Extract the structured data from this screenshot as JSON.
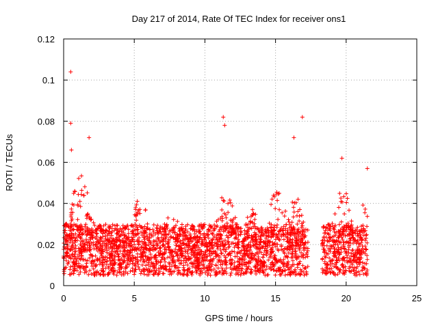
{
  "chart_data": {
    "type": "scatter",
    "title": "Day 217 of 2014, Rate Of TEC Index for receiver ons1",
    "xlabel": "GPS time / hours",
    "ylabel": "ROTI / TECUs",
    "xlim": [
      0,
      25
    ],
    "ylim": [
      0,
      0.12
    ],
    "xticks": [
      "0",
      "5",
      "10",
      "15",
      "20",
      "25"
    ],
    "yticks": [
      "0",
      "0.02",
      "0.04",
      "0.06",
      "0.08",
      "0.1",
      "0.12"
    ],
    "grid": true,
    "marker": "+",
    "series": [
      {
        "name": "ROTI",
        "color": "#ff0000",
        "summary": {
          "x_range_hours": [
            0,
            21.5
          ],
          "gap_hours": [
            17.3,
            18.3
          ],
          "dense_band": [
            0.005,
            0.03
          ],
          "notable_points": [
            {
              "x": 0.5,
              "y": 0.104
            },
            {
              "x": 0.5,
              "y": 0.079
            },
            {
              "x": 0.55,
              "y": 0.066
            },
            {
              "x": 1.8,
              "y": 0.072
            },
            {
              "x": 11.3,
              "y": 0.082
            },
            {
              "x": 11.4,
              "y": 0.078
            },
            {
              "x": 16.3,
              "y": 0.072
            },
            {
              "x": 16.9,
              "y": 0.082
            },
            {
              "x": 19.7,
              "y": 0.062
            },
            {
              "x": 21.5,
              "y": 0.057
            }
          ]
        }
      }
    ]
  }
}
